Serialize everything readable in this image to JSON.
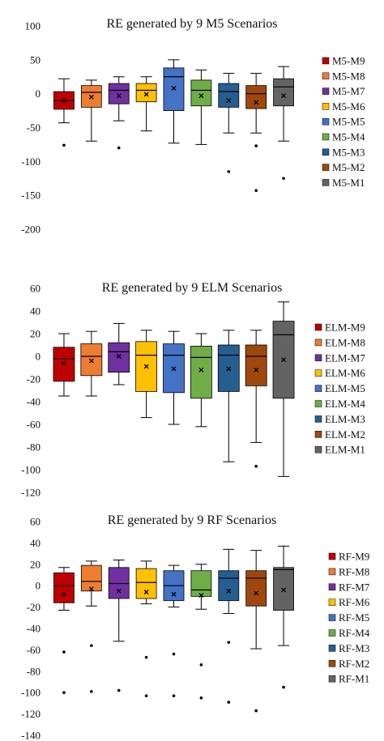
{
  "chart_data": [
    {
      "type": "boxplot",
      "title": "RE generated by 9 M5 Scenarios",
      "ylim": [
        -200,
        100
      ],
      "yticks": [
        100,
        50,
        0,
        -50,
        -100,
        -150,
        -200
      ],
      "grid": false,
      "legend_position": "right",
      "series": [
        {
          "name": "M5-M9",
          "color": "#C00000",
          "whisker_low": -43,
          "q1": -23,
          "median": -10,
          "q3": 3,
          "whisker_high": 22,
          "mean": -10,
          "outliers": [
            -76
          ]
        },
        {
          "name": "M5-M8",
          "color": "#ED7D31",
          "whisker_low": -70,
          "q1": -20,
          "median": 2,
          "q3": 12,
          "whisker_high": 20,
          "mean": -5,
          "outliers": []
        },
        {
          "name": "M5-M7",
          "color": "#7030A0",
          "whisker_low": -40,
          "q1": -15,
          "median": 5,
          "q3": 15,
          "whisker_high": 25,
          "mean": -3,
          "outliers": [
            -80
          ]
        },
        {
          "name": "M5-M6",
          "color": "#FFC000",
          "whisker_low": -55,
          "q1": -12,
          "median": 5,
          "q3": 15,
          "whisker_high": 25,
          "mean": -1,
          "outliers": []
        },
        {
          "name": "M5-M5",
          "color": "#4472C4",
          "whisker_low": -73,
          "q1": -25,
          "median": 25,
          "q3": 38,
          "whisker_high": 50,
          "mean": 8,
          "outliers": []
        },
        {
          "name": "M5-M4",
          "color": "#70AD47",
          "whisker_low": -75,
          "q1": -18,
          "median": 5,
          "q3": 20,
          "whisker_high": 35,
          "mean": -3,
          "outliers": []
        },
        {
          "name": "M5-M3",
          "color": "#255E91",
          "whisker_low": -58,
          "q1": -20,
          "median": 3,
          "q3": 15,
          "whisker_high": 30,
          "mean": -10,
          "outliers": [
            -115
          ]
        },
        {
          "name": "M5-M2",
          "color": "#9E480E",
          "whisker_low": -58,
          "q1": -22,
          "median": 0,
          "q3": 12,
          "whisker_high": 30,
          "mean": -13,
          "outliers": [
            -77,
            -143
          ]
        },
        {
          "name": "M5-M1",
          "color": "#636363",
          "whisker_low": -70,
          "q1": -18,
          "median": 10,
          "q3": 22,
          "whisker_high": 40,
          "mean": -3,
          "outliers": [
            -125
          ]
        }
      ]
    },
    {
      "type": "boxplot",
      "title": "RE generated by 9 ELM Scenarios",
      "ylim": [
        -120,
        60
      ],
      "yticks": [
        60,
        40,
        20,
        0,
        -20,
        -40,
        -60,
        -80,
        -100,
        -120
      ],
      "grid": false,
      "legend_position": "right",
      "series": [
        {
          "name": "ELM-M9",
          "color": "#C00000",
          "whisker_low": -35,
          "q1": -22,
          "median": -2,
          "q3": 8,
          "whisker_high": 20,
          "mean": -6,
          "outliers": []
        },
        {
          "name": "ELM-M8",
          "color": "#ED7D31",
          "whisker_low": -35,
          "q1": -17,
          "median": 0,
          "q3": 11,
          "whisker_high": 22,
          "mean": -4,
          "outliers": []
        },
        {
          "name": "ELM-M7",
          "color": "#7030A0",
          "whisker_low": -25,
          "q1": -14,
          "median": 4,
          "q3": 12,
          "whisker_high": 29,
          "mean": 0,
          "outliers": []
        },
        {
          "name": "ELM-M6",
          "color": "#FFC000",
          "whisker_low": -54,
          "q1": -31,
          "median": 1,
          "q3": 13,
          "whisker_high": 23,
          "mean": -9,
          "outliers": []
        },
        {
          "name": "ELM-M5",
          "color": "#4472C4",
          "whisker_low": -60,
          "q1": -32,
          "median": 1,
          "q3": 11,
          "whisker_high": 22,
          "mean": -11,
          "outliers": []
        },
        {
          "name": "ELM-M4",
          "color": "#70AD47",
          "whisker_low": -62,
          "q1": -37,
          "median": -1,
          "q3": 9,
          "whisker_high": 20,
          "mean": -12,
          "outliers": []
        },
        {
          "name": "ELM-M3",
          "color": "#255E91",
          "whisker_low": -93,
          "q1": -31,
          "median": 1,
          "q3": 10,
          "whisker_high": 23,
          "mean": -11,
          "outliers": []
        },
        {
          "name": "ELM-M2",
          "color": "#9E480E",
          "whisker_low": -76,
          "q1": -26,
          "median": 0,
          "q3": 10,
          "whisker_high": 23,
          "mean": -12,
          "outliers": [
            -97
          ]
        },
        {
          "name": "ELM-M1",
          "color": "#636363",
          "whisker_low": -106,
          "q1": -37,
          "median": 19,
          "q3": 31,
          "whisker_high": 48,
          "mean": -3,
          "outliers": []
        }
      ]
    },
    {
      "type": "boxplot",
      "title": "RE generated by 9 RF Scenarios",
      "ylim": [
        -140,
        60
      ],
      "yticks": [
        60,
        40,
        20,
        0,
        -20,
        -40,
        -60,
        -80,
        -100,
        -120,
        -140
      ],
      "grid": false,
      "legend_position": "right",
      "series": [
        {
          "name": "RF-M9",
          "color": "#C00000",
          "whisker_low": -23,
          "q1": -16,
          "median": 0,
          "q3": 12,
          "whisker_high": 17,
          "mean": -8,
          "outliers": [
            -62,
            -100
          ]
        },
        {
          "name": "RF-M8",
          "color": "#ED7D31",
          "whisker_low": -19,
          "q1": -5,
          "median": 4,
          "q3": 19,
          "whisker_high": 23,
          "mean": -3,
          "outliers": [
            -56,
            -99
          ]
        },
        {
          "name": "RF-M7",
          "color": "#7030A0",
          "whisker_low": -52,
          "q1": -12,
          "median": 2,
          "q3": 17,
          "whisker_high": 24,
          "mean": -5,
          "outliers": [
            -98
          ]
        },
        {
          "name": "RF-M6",
          "color": "#FFC000",
          "whisker_low": -17,
          "q1": -12,
          "median": 3,
          "q3": 16,
          "whisker_high": 23,
          "mean": -6,
          "outliers": [
            -67,
            -103
          ]
        },
        {
          "name": "RF-M5",
          "color": "#4472C4",
          "whisker_low": -20,
          "q1": -14,
          "median": 0,
          "q3": 14,
          "whisker_high": 19,
          "mean": -8,
          "outliers": [
            -64,
            -103
          ]
        },
        {
          "name": "RF-M4",
          "color": "#70AD47",
          "whisker_low": -22,
          "q1": -10,
          "median": -4,
          "q3": 14,
          "whisker_high": 20,
          "mean": -9,
          "outliers": [
            -74,
            -105
          ]
        },
        {
          "name": "RF-M3",
          "color": "#255E91",
          "whisker_low": -26,
          "q1": -14,
          "median": 7,
          "q3": 14,
          "whisker_high": 34,
          "mean": -5,
          "outliers": [
            -53,
            -109
          ]
        },
        {
          "name": "RF-M2",
          "color": "#9E480E",
          "whisker_low": -59,
          "q1": -19,
          "median": 7,
          "q3": 14,
          "whisker_high": 33,
          "mean": -7,
          "outliers": [
            -117
          ]
        },
        {
          "name": "RF-M1",
          "color": "#636363",
          "whisker_low": -56,
          "q1": -23,
          "median": 15,
          "q3": 17,
          "whisker_high": 37,
          "mean": -4,
          "outliers": [
            -95
          ]
        }
      ]
    }
  ]
}
